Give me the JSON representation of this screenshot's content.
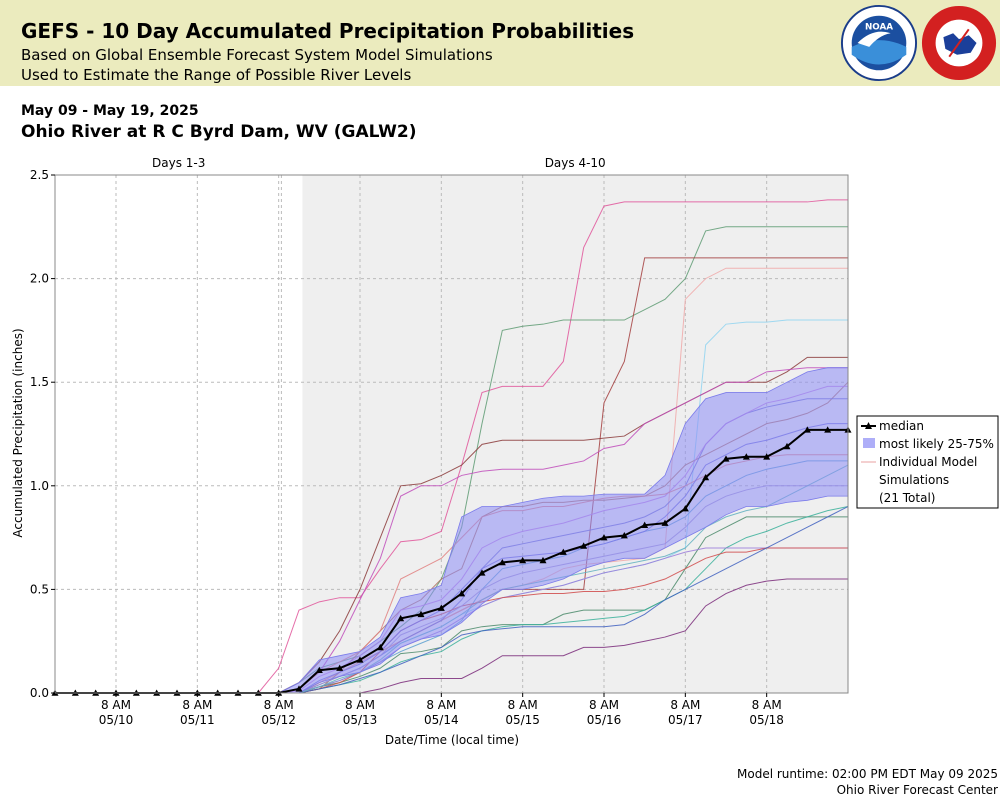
{
  "banner": {
    "title": "GEFS - 10 Day Accumulated Precipitation Probabilities",
    "subtitle_line1": "Based on Global Ensemble Forecast System Model Simulations",
    "subtitle_line2": "Used to Estimate the Range of Possible River Levels",
    "logos": [
      "noaa-logo",
      "national-weather-service-logo"
    ],
    "background_color": "#ebebbe"
  },
  "header": {
    "date_range": "May 09 - May 19, 2025",
    "station": "Ohio River at R C Byrd Dam, WV (GALW2)"
  },
  "chart_data": {
    "type": "line",
    "ylabel": "Accumulated Precipitation (inches)",
    "xlabel": "Date/Time (local time)",
    "ylim": [
      0,
      2.5
    ],
    "yticks": [
      "0.0",
      "0.5",
      "1.0",
      "1.5",
      "2.0",
      "2.5"
    ],
    "x_unit": "hours since 5/9 14:00 EDT",
    "x_range": [
      0,
      234
    ],
    "xticks": [
      {
        "x": 18,
        "label_top": "8 AM",
        "label_bottom": "05/10"
      },
      {
        "x": 42,
        "label_top": "8 AM",
        "label_bottom": "05/11"
      },
      {
        "x": 66,
        "label_top": "8 AM",
        "label_bottom": "05/12"
      },
      {
        "x": 90,
        "label_top": "8 AM",
        "label_bottom": "05/13"
      },
      {
        "x": 114,
        "label_top": "8 AM",
        "label_bottom": "05/14"
      },
      {
        "x": 138,
        "label_top": "8 AM",
        "label_bottom": "05/15"
      },
      {
        "x": 162,
        "label_top": "8 AM",
        "label_bottom": "05/16"
      },
      {
        "x": 186,
        "label_top": "8 AM",
        "label_bottom": "05/17"
      },
      {
        "x": 210,
        "label_top": "8 AM",
        "label_bottom": "05/18"
      }
    ],
    "period_labels": [
      {
        "label": "Days 1-3",
        "range": [
          0,
          73
        ]
      },
      {
        "label": "Days 4-10",
        "range": [
          73,
          234
        ]
      }
    ],
    "shaded_period_start": 73,
    "grid": true,
    "legend_position": "right",
    "legend": {
      "median": "median",
      "band": "most likely 25-75%",
      "members_line1": "Individual Model",
      "members_line2": "Simulations",
      "members_line3": "(21 Total)"
    },
    "colors": {
      "median": "#000000",
      "band": "#8c8cf5",
      "shaded_period": "#efefef",
      "grid": "#bbbbbb"
    },
    "x": [
      0,
      6,
      12,
      18,
      24,
      30,
      36,
      42,
      48,
      54,
      60,
      66,
      72,
      78,
      84,
      90,
      96,
      102,
      108,
      114,
      120,
      126,
      132,
      138,
      144,
      150,
      156,
      162,
      168,
      174,
      180,
      186,
      192,
      198,
      204,
      210,
      216,
      222,
      228,
      234
    ],
    "median": [
      0,
      0,
      0,
      0,
      0,
      0,
      0,
      0,
      0,
      0,
      0,
      0,
      0.02,
      0.11,
      0.12,
      0.16,
      0.22,
      0.36,
      0.38,
      0.41,
      0.48,
      0.58,
      0.63,
      0.64,
      0.64,
      0.68,
      0.71,
      0.75,
      0.76,
      0.81,
      0.82,
      0.89,
      1.04,
      1.13,
      1.14,
      1.14,
      1.19,
      1.27,
      1.27,
      1.27
    ],
    "band_low": [
      0,
      0,
      0,
      0,
      0,
      0,
      0,
      0,
      0,
      0,
      0,
      0,
      0,
      0.05,
      0.08,
      0.1,
      0.14,
      0.22,
      0.26,
      0.28,
      0.34,
      0.43,
      0.5,
      0.5,
      0.52,
      0.55,
      0.6,
      0.63,
      0.65,
      0.65,
      0.7,
      0.75,
      0.8,
      0.86,
      0.9,
      0.9,
      0.92,
      0.93,
      0.95,
      0.95
    ],
    "band_high": [
      0,
      0,
      0,
      0,
      0,
      0,
      0,
      0,
      0,
      0,
      0,
      0,
      0.05,
      0.16,
      0.18,
      0.2,
      0.27,
      0.46,
      0.48,
      0.52,
      0.85,
      0.9,
      0.9,
      0.92,
      0.94,
      0.95,
      0.95,
      0.96,
      0.96,
      0.96,
      1.05,
      1.3,
      1.42,
      1.45,
      1.45,
      1.45,
      1.5,
      1.55,
      1.57,
      1.57
    ],
    "series": [
      {
        "color": "#e0559a",
        "values": [
          0,
          0,
          0,
          0,
          0,
          0,
          0,
          0,
          0,
          0,
          0,
          0.12,
          0.4,
          0.44,
          0.46,
          0.46,
          0.6,
          0.73,
          0.74,
          0.78,
          1.1,
          1.45,
          1.48,
          1.48,
          1.48,
          1.6,
          2.15,
          2.35,
          2.37,
          2.37,
          2.37,
          2.37,
          2.37,
          2.37,
          2.37,
          2.37,
          2.37,
          2.37,
          2.38,
          2.38
        ]
      },
      {
        "color": "#5e9b73",
        "values": [
          0,
          0,
          0,
          0,
          0,
          0,
          0,
          0,
          0,
          0,
          0,
          0,
          0.05,
          0.12,
          0.15,
          0.18,
          0.25,
          0.32,
          0.4,
          0.55,
          0.8,
          1.3,
          1.75,
          1.77,
          1.78,
          1.8,
          1.8,
          1.8,
          1.8,
          1.85,
          1.9,
          2.0,
          2.23,
          2.25,
          2.25,
          2.25,
          2.25,
          2.25,
          2.25,
          2.25
        ]
      },
      {
        "color": "#a33d3d",
        "values": [
          0,
          0,
          0,
          0,
          0,
          0,
          0,
          0,
          0,
          0,
          0,
          0,
          0,
          0.05,
          0.1,
          0.15,
          0.2,
          0.25,
          0.3,
          0.35,
          0.4,
          0.45,
          0.5,
          0.5,
          0.5,
          0.5,
          0.5,
          1.4,
          1.6,
          2.1,
          2.1,
          2.1,
          2.1,
          2.1,
          2.1,
          2.1,
          2.1,
          2.1,
          2.1,
          2.1
        ]
      },
      {
        "color": "#f0a8a8",
        "values": [
          0,
          0,
          0,
          0,
          0,
          0,
          0,
          0,
          0,
          0,
          0,
          0,
          0,
          0.05,
          0.1,
          0.15,
          0.2,
          0.25,
          0.3,
          0.35,
          0.4,
          0.45,
          0.5,
          0.52,
          0.55,
          0.6,
          0.62,
          0.63,
          0.64,
          0.65,
          0.7,
          1.9,
          2.0,
          2.05,
          2.05,
          2.05,
          2.05,
          2.05,
          2.05,
          2.05
        ]
      },
      {
        "color": "#8fd4f0",
        "values": [
          0,
          0,
          0,
          0,
          0,
          0,
          0,
          0,
          0,
          0,
          0,
          0,
          0,
          0.04,
          0.08,
          0.12,
          0.18,
          0.24,
          0.28,
          0.32,
          0.38,
          0.42,
          0.46,
          0.48,
          0.5,
          0.52,
          0.55,
          0.58,
          0.6,
          0.62,
          0.65,
          0.7,
          1.68,
          1.78,
          1.79,
          1.79,
          1.8,
          1.8,
          1.8,
          1.8
        ]
      },
      {
        "color": "#8b3a3a",
        "values": [
          0,
          0,
          0,
          0,
          0,
          0,
          0,
          0,
          0,
          0,
          0,
          0,
          0.05,
          0.15,
          0.3,
          0.5,
          0.75,
          1.0,
          1.01,
          1.05,
          1.1,
          1.2,
          1.22,
          1.22,
          1.22,
          1.22,
          1.22,
          1.23,
          1.24,
          1.3,
          1.35,
          1.4,
          1.45,
          1.5,
          1.5,
          1.5,
          1.55,
          1.62,
          1.62,
          1.62
        ]
      },
      {
        "color": "#c04dbb",
        "values": [
          0,
          0,
          0,
          0,
          0,
          0,
          0,
          0,
          0,
          0,
          0,
          0,
          0.02,
          0.1,
          0.25,
          0.45,
          0.65,
          0.95,
          1.0,
          1.0,
          1.05,
          1.07,
          1.08,
          1.08,
          1.08,
          1.1,
          1.12,
          1.18,
          1.2,
          1.3,
          1.35,
          1.4,
          1.45,
          1.5,
          1.5,
          1.55,
          1.56,
          1.57,
          1.57,
          1.57
        ]
      },
      {
        "color": "#b07060",
        "values": [
          0,
          0,
          0,
          0,
          0,
          0,
          0,
          0,
          0,
          0,
          0,
          0,
          0,
          0.02,
          0.1,
          0.2,
          0.3,
          0.4,
          0.45,
          0.55,
          0.6,
          0.85,
          0.9,
          0.9,
          0.92,
          0.92,
          0.93,
          0.93,
          0.94,
          0.95,
          1.0,
          1.1,
          1.15,
          1.2,
          1.25,
          1.3,
          1.32,
          1.35,
          1.4,
          1.5
        ]
      },
      {
        "color": "#7070d0",
        "values": [
          0,
          0,
          0,
          0,
          0,
          0,
          0,
          0,
          0,
          0,
          0,
          0,
          0,
          0.04,
          0.08,
          0.12,
          0.18,
          0.25,
          0.3,
          0.35,
          0.45,
          0.6,
          0.7,
          0.72,
          0.74,
          0.76,
          0.78,
          0.8,
          0.82,
          0.85,
          0.9,
          1.0,
          1.2,
          1.3,
          1.35,
          1.38,
          1.4,
          1.42,
          1.42,
          1.42
        ]
      },
      {
        "color": "#5a9fd0",
        "values": [
          0,
          0,
          0,
          0,
          0,
          0,
          0,
          0,
          0,
          0,
          0,
          0,
          0,
          0.03,
          0.06,
          0.1,
          0.15,
          0.2,
          0.24,
          0.28,
          0.35,
          0.5,
          0.6,
          0.62,
          0.64,
          0.66,
          0.7,
          0.72,
          0.75,
          0.78,
          0.8,
          0.85,
          0.95,
          1.0,
          1.05,
          1.08,
          1.1,
          1.12,
          1.12,
          1.12
        ]
      },
      {
        "color": "#4a8a6a",
        "values": [
          0,
          0,
          0,
          0,
          0,
          0,
          0,
          0,
          0,
          0,
          0,
          0,
          0,
          0.03,
          0.05,
          0.08,
          0.12,
          0.19,
          0.2,
          0.22,
          0.3,
          0.32,
          0.33,
          0.33,
          0.33,
          0.38,
          0.4,
          0.4,
          0.4,
          0.4,
          0.45,
          0.6,
          0.75,
          0.8,
          0.85,
          0.85,
          0.85,
          0.85,
          0.85,
          0.85
        ]
      },
      {
        "color": "#7a2a7a",
        "values": [
          0,
          0,
          0,
          0,
          0,
          0,
          0,
          0,
          0,
          0,
          0,
          0,
          0,
          0,
          0,
          0,
          0.02,
          0.05,
          0.07,
          0.07,
          0.07,
          0.12,
          0.18,
          0.18,
          0.18,
          0.18,
          0.22,
          0.22,
          0.23,
          0.25,
          0.27,
          0.3,
          0.42,
          0.48,
          0.52,
          0.54,
          0.55,
          0.55,
          0.55,
          0.55
        ]
      },
      {
        "color": "#3ab09a",
        "values": [
          0,
          0,
          0,
          0,
          0,
          0,
          0,
          0,
          0,
          0,
          0,
          0,
          0,
          0.02,
          0.04,
          0.06,
          0.1,
          0.15,
          0.18,
          0.2,
          0.26,
          0.3,
          0.32,
          0.33,
          0.33,
          0.34,
          0.35,
          0.36,
          0.37,
          0.4,
          0.45,
          0.5,
          0.6,
          0.7,
          0.75,
          0.78,
          0.82,
          0.85,
          0.88,
          0.9
        ]
      },
      {
        "color": "#9a7ad8",
        "values": [
          0,
          0,
          0,
          0,
          0,
          0,
          0,
          0,
          0,
          0,
          0,
          0,
          0,
          0.03,
          0.06,
          0.1,
          0.15,
          0.22,
          0.26,
          0.3,
          0.36,
          0.42,
          0.46,
          0.48,
          0.5,
          0.52,
          0.55,
          0.58,
          0.6,
          0.62,
          0.65,
          0.68,
          0.7,
          0.7,
          0.7,
          0.7,
          0.7,
          0.7,
          0.7,
          0.7
        ]
      },
      {
        "color": "#d04a4a",
        "values": [
          0,
          0,
          0,
          0,
          0,
          0,
          0,
          0,
          0,
          0,
          0,
          0,
          0,
          0.02,
          0.05,
          0.1,
          0.2,
          0.3,
          0.35,
          0.38,
          0.42,
          0.44,
          0.46,
          0.47,
          0.48,
          0.48,
          0.49,
          0.49,
          0.5,
          0.52,
          0.55,
          0.6,
          0.65,
          0.68,
          0.68,
          0.7,
          0.7,
          0.7,
          0.7,
          0.7
        ]
      },
      {
        "color": "#4060c0",
        "values": [
          0,
          0,
          0,
          0,
          0,
          0,
          0,
          0,
          0,
          0,
          0,
          0,
          0,
          0.02,
          0.04,
          0.07,
          0.1,
          0.14,
          0.18,
          0.22,
          0.28,
          0.3,
          0.31,
          0.32,
          0.32,
          0.32,
          0.32,
          0.32,
          0.33,
          0.38,
          0.45,
          0.5,
          0.55,
          0.6,
          0.65,
          0.7,
          0.75,
          0.8,
          0.85,
          0.9
        ]
      },
      {
        "color": "#c080e0",
        "values": [
          0,
          0,
          0,
          0,
          0,
          0,
          0,
          0,
          0,
          0,
          0,
          0,
          0.01,
          0.08,
          0.12,
          0.18,
          0.25,
          0.4,
          0.42,
          0.45,
          0.55,
          0.7,
          0.75,
          0.78,
          0.8,
          0.82,
          0.85,
          0.88,
          0.9,
          0.92,
          0.95,
          1.05,
          1.2,
          1.3,
          1.35,
          1.4,
          1.42,
          1.45,
          1.48,
          1.48
        ]
      },
      {
        "color": "#e08080",
        "values": [
          0,
          0,
          0,
          0,
          0,
          0,
          0,
          0,
          0,
          0,
          0,
          0,
          0.02,
          0.1,
          0.15,
          0.2,
          0.3,
          0.55,
          0.6,
          0.65,
          0.75,
          0.85,
          0.88,
          0.88,
          0.9,
          0.9,
          0.92,
          0.94,
          0.95,
          0.95,
          0.96,
          1.0,
          1.05,
          1.1,
          1.12,
          1.14,
          1.15,
          1.15,
          1.15,
          1.15
        ]
      },
      {
        "color": "#6a6ad8",
        "values": [
          0,
          0,
          0,
          0,
          0,
          0,
          0,
          0,
          0,
          0,
          0,
          0,
          0,
          0.06,
          0.1,
          0.14,
          0.2,
          0.3,
          0.35,
          0.4,
          0.5,
          0.6,
          0.65,
          0.66,
          0.67,
          0.68,
          0.7,
          0.72,
          0.75,
          0.78,
          0.85,
          0.95,
          1.1,
          1.15,
          1.2,
          1.22,
          1.25,
          1.28,
          1.3,
          1.3
        ]
      },
      {
        "color": "#a090d0",
        "values": [
          0,
          0,
          0,
          0,
          0,
          0,
          0,
          0,
          0,
          0,
          0,
          0,
          0,
          0.04,
          0.08,
          0.12,
          0.18,
          0.28,
          0.32,
          0.36,
          0.42,
          0.5,
          0.55,
          0.58,
          0.6,
          0.62,
          0.64,
          0.66,
          0.68,
          0.7,
          0.72,
          0.8,
          0.9,
          0.95,
          0.98,
          1.0,
          1.0,
          1.0,
          1.0,
          1.0
        ]
      },
      {
        "color": "#60b0c0",
        "values": [
          0,
          0,
          0,
          0,
          0,
          0,
          0,
          0,
          0,
          0,
          0,
          0,
          0,
          0.03,
          0.07,
          0.1,
          0.16,
          0.24,
          0.28,
          0.32,
          0.38,
          0.45,
          0.5,
          0.52,
          0.54,
          0.56,
          0.58,
          0.6,
          0.62,
          0.64,
          0.66,
          0.7,
          0.8,
          0.85,
          0.88,
          0.9,
          0.95,
          1.0,
          1.05,
          1.1
        ]
      }
    ]
  },
  "footer": {
    "runtime": "Model runtime: 02:00 PM EDT May 09 2025",
    "center": "Ohio River Forecast Center"
  }
}
